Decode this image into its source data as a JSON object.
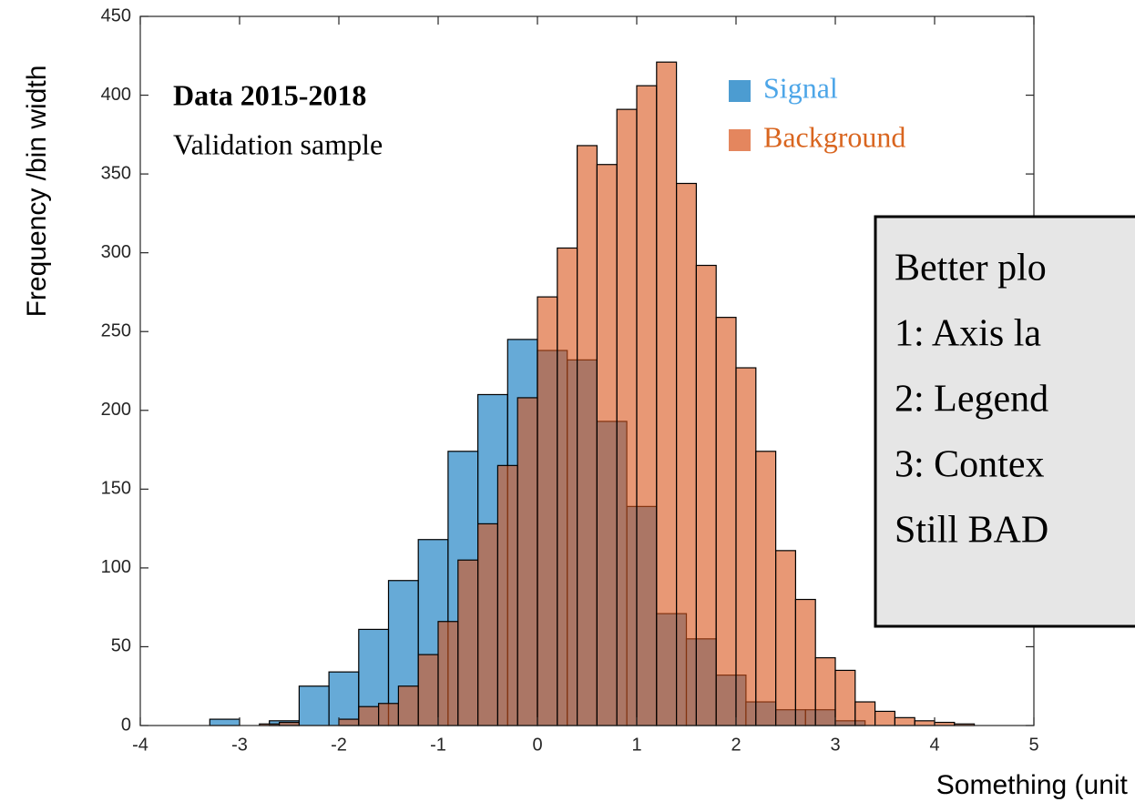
{
  "chart_data": {
    "type": "histogram",
    "xlabel": "Something (unit X)",
    "ylabel": "Frequency /bin width",
    "annotations": [
      "Data 2015-2018",
      "Validation sample"
    ],
    "note_box": [
      "Better plo",
      "1: Axis la",
      "2: Legend",
      "3: Contex",
      "Still BAD"
    ],
    "xlim": [
      -4,
      5
    ],
    "xticks": [
      -4,
      -3,
      -2,
      -1,
      0,
      1,
      2,
      3,
      4,
      5
    ],
    "ylim": [
      0,
      450
    ],
    "yticks": [
      0,
      50,
      100,
      150,
      200,
      250,
      300,
      350,
      400,
      450
    ],
    "series": [
      {
        "name": "Signal",
        "color": "#0072bd",
        "bins": [
          -3.3,
          -3,
          -2.7,
          -2.4,
          -2.1,
          -1.8,
          -1.5,
          -1.2,
          -0.9,
          -0.6,
          -0.3,
          0,
          0.3,
          0.6,
          0.9,
          1.2,
          1.5,
          1.8,
          2.1,
          2.4,
          2.7,
          3,
          3.3
        ],
        "values": [
          4,
          0,
          3,
          25,
          34,
          61,
          92,
          118,
          174,
          210,
          245,
          238,
          232,
          193,
          139,
          71,
          55,
          32,
          15,
          10,
          10,
          3
        ]
      },
      {
        "name": "Background",
        "color": "#d95319",
        "bins": [
          -2.8,
          -2.6,
          -2.4,
          -2.2,
          -2,
          -1.8,
          -1.6,
          -1.4,
          -1.2,
          -1,
          -0.8,
          -0.6,
          -0.4,
          -0.2,
          0,
          0.2,
          0.4,
          0.6,
          0.8,
          1,
          1.2,
          1.4,
          1.6,
          1.8,
          2,
          2.2,
          2.4,
          2.6,
          2.8,
          3,
          3.2,
          3.4,
          3.6,
          3.8,
          4,
          4.2,
          4.4
        ],
        "values": [
          1,
          2,
          0,
          0,
          4,
          12,
          14,
          25,
          45,
          66,
          105,
          128,
          165,
          208,
          272,
          303,
          368,
          356,
          391,
          406,
          421,
          344,
          292,
          259,
          227,
          174,
          111,
          80,
          43,
          35,
          15,
          9,
          5,
          3,
          2,
          1
        ]
      }
    ]
  }
}
